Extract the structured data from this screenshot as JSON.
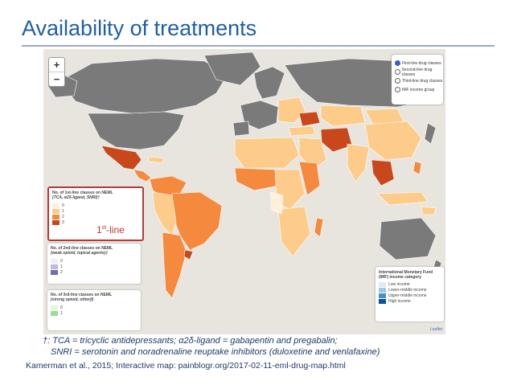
{
  "slide": {
    "title": "Availability of treatments",
    "footnote_line1": "†: TCA = tricyclic antidepressants; α2δ-ligand = gabapentin and pregabalin;",
    "footnote_line2": "SNRI = serotonin and noradrenaline reuptake inhibitors (duloxetine and venlafaxine)",
    "citation": "Kamerman et al., 2015;  Interactive map: painblogr.org/2017-02-11-eml-drug-map.html",
    "highlight_label_base": "1",
    "highlight_label_sup": "st",
    "highlight_label_rest": "-line"
  },
  "map": {
    "zoom_in": "+",
    "zoom_out": "−",
    "layers": [
      {
        "label": "First-line drug classes",
        "selected": true
      },
      {
        "label": "Second-line drug classes",
        "selected": false
      },
      {
        "label": "Third-line drug classes",
        "selected": false
      },
      {
        "label": "IMF income group",
        "selected": false
      }
    ],
    "legend_first": {
      "title": "No. of 1st-line classes on NEML",
      "subtitle": "(TCA, α2δ-ligand, SNRI)†",
      "items": [
        {
          "label": "0",
          "color": "#fef0d9"
        },
        {
          "label": "1",
          "color": "#fdcc8a"
        },
        {
          "label": "2",
          "color": "#f58a3f"
        },
        {
          "label": "3",
          "color": "#c8481c"
        }
      ]
    },
    "legend_second": {
      "title": "No. of 2nd-line classes on NEML",
      "subtitle": "(weak opioid, topical agents)‡",
      "items": [
        {
          "label": "0",
          "color": "#f0eef7"
        },
        {
          "label": "1",
          "color": "#bcbddc"
        },
        {
          "label": "2",
          "color": "#756bb1"
        }
      ]
    },
    "legend_third": {
      "title": "No. of 3rd-line classes on NEML",
      "subtitle": "(strong opioid, other)§",
      "items": [
        {
          "label": "0",
          "color": "#e5f5e0"
        },
        {
          "label": "1",
          "color": "#a1d99b"
        }
      ]
    },
    "imf_legend": {
      "title": "International Monetary Fund (IMF) income category",
      "items": [
        {
          "label": "Low income",
          "color": "#deebf7"
        },
        {
          "label": "Lower-middle income",
          "color": "#9ecae1"
        },
        {
          "label": "Upper-middle income",
          "color": "#4292c6"
        },
        {
          "label": "High income",
          "color": "#08519c"
        }
      ]
    },
    "attribution": "Leaflet",
    "colors": {
      "ocean": "#e8e5df",
      "no_data": "#7a7a7a",
      "level_0": "#fef0d9",
      "level_1": "#fdcc8a",
      "level_2": "#f58a3f",
      "level_3": "#c8481c",
      "border": "#ffffff"
    }
  }
}
